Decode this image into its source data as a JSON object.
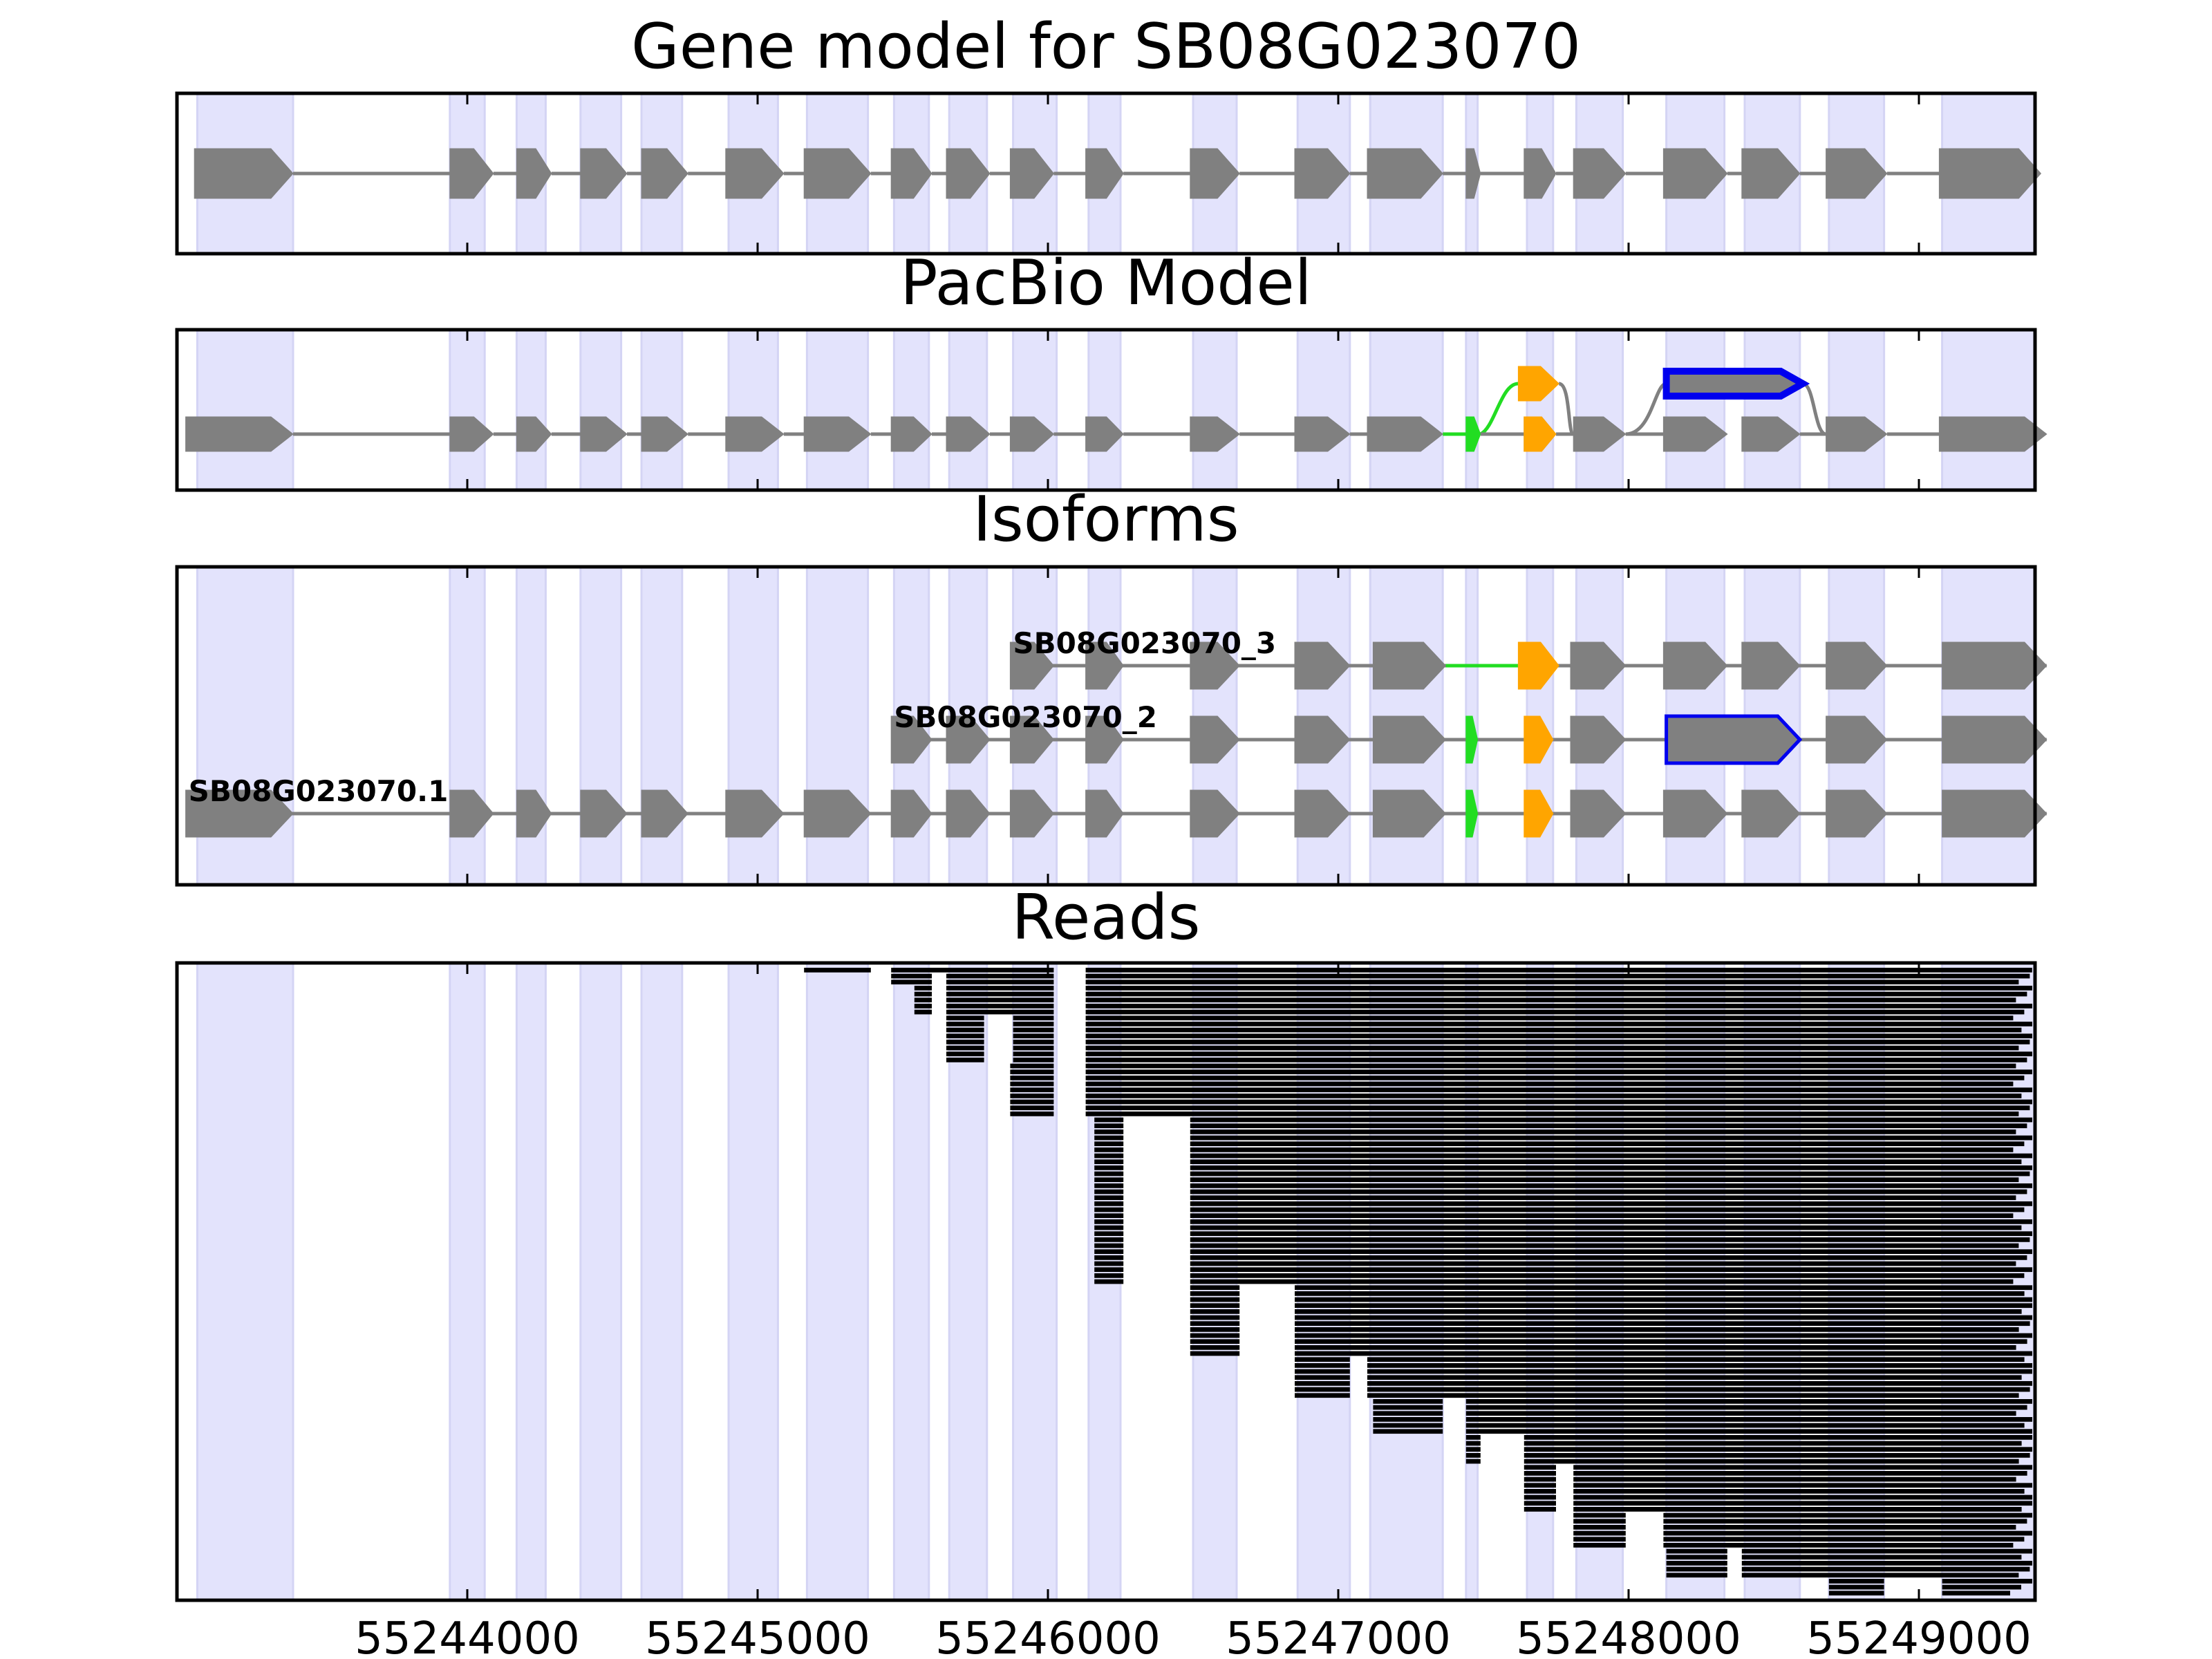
{
  "chart_data": {
    "type": "gene-track",
    "genomic_range": [
      55243000,
      55249400
    ],
    "xticks": [
      55244000,
      55245000,
      55246000,
      55247000,
      55248000,
      55249000
    ],
    "colors": {
      "exon": "#808080",
      "intron": "#808080",
      "highlight": "#e3e3fc",
      "alt_green": "#22dd22",
      "alt_orange": "#ffa500",
      "retained_intron": "#0000ee",
      "read": "#000000"
    },
    "exon_regions": [
      [
        55243070,
        55243400
      ],
      [
        55243940,
        55244060
      ],
      [
        55244170,
        55244270
      ],
      [
        55244390,
        55244530
      ],
      [
        55244600,
        55244740
      ],
      [
        55244900,
        55245070
      ],
      [
        55245170,
        55245380
      ],
      [
        55245470,
        55245590
      ],
      [
        55245660,
        55245790
      ],
      [
        55245880,
        55246030
      ],
      [
        55246140,
        55246250
      ],
      [
        55246500,
        55246650
      ],
      [
        55246860,
        55247040
      ],
      [
        55247110,
        55247360
      ],
      [
        55247440,
        55247480
      ],
      [
        55247650,
        55247740
      ],
      [
        55247820,
        55247980
      ],
      [
        55248130,
        55248330
      ],
      [
        55248400,
        55248590
      ],
      [
        55248690,
        55248880
      ],
      [
        55249080,
        55249400
      ]
    ],
    "panels": [
      {
        "title": "Gene model for SB08G023070"
      },
      {
        "title": "PacBio Model"
      },
      {
        "title": "Isoforms"
      },
      {
        "title": "Reads"
      }
    ],
    "gene_model": {
      "exons": [
        [
          55243060,
          55243400
        ],
        [
          55243940,
          55244090
        ],
        [
          55244170,
          55244290
        ],
        [
          55244390,
          55244550
        ],
        [
          55244600,
          55244760
        ],
        [
          55244890,
          55245090
        ],
        [
          55245160,
          55245390
        ],
        [
          55245460,
          55245600
        ],
        [
          55245650,
          55245800
        ],
        [
          55245870,
          55246020
        ],
        [
          55246130,
          55246260
        ],
        [
          55246490,
          55246660
        ],
        [
          55246850,
          55247040
        ],
        [
          55247100,
          55247360
        ],
        [
          55247440,
          55247490
        ],
        [
          55247640,
          55247750
        ],
        [
          55247810,
          55247990
        ],
        [
          55248120,
          55248340
        ],
        [
          55248390,
          55248590
        ],
        [
          55248680,
          55248890
        ],
        [
          55249070,
          55249420
        ]
      ]
    },
    "pacbio_model": {
      "exons": [
        [
          55243030,
          55243400
        ],
        [
          55243940,
          55244090
        ],
        [
          55244170,
          55244290
        ],
        [
          55244390,
          55244550
        ],
        [
          55244600,
          55244760
        ],
        [
          55244890,
          55245090
        ],
        [
          55245160,
          55245390
        ],
        [
          55245460,
          55245600
        ],
        [
          55245650,
          55245800
        ],
        [
          55245870,
          55246020
        ],
        [
          55246130,
          55246260
        ],
        [
          55246490,
          55246660
        ],
        [
          55246850,
          55247040
        ],
        [
          55247100,
          55247360
        ],
        [
          55247640,
          55247750
        ],
        [
          55247810,
          55247990
        ],
        [
          55248120,
          55248340
        ],
        [
          55248390,
          55248590
        ],
        [
          55248680,
          55248890
        ],
        [
          55249070,
          55249440
        ]
      ],
      "green_exon": [
        55247440,
        55247490
      ],
      "orange_exon_main": [
        55247640,
        55247750
      ],
      "orange_exon_alt": [
        55247620,
        55247760
      ],
      "blue_retained": [
        55248130,
        55248600
      ]
    },
    "isoforms": [
      {
        "label": "SB08G023070_3",
        "label_x": 55245870,
        "exons": [
          [
            55245870,
            55246020
          ],
          [
            55246130,
            55246260
          ],
          [
            55246490,
            55246660
          ],
          [
            55246850,
            55247040
          ],
          [
            55247120,
            55247370
          ],
          [
            55247800,
            55247990
          ],
          [
            55248120,
            55248340
          ],
          [
            55248390,
            55248590
          ],
          [
            55248680,
            55248890
          ],
          [
            55249080,
            55249440
          ]
        ],
        "orange": [
          55247620,
          55247760
        ],
        "green_link": [
          55247370,
          55247620
        ],
        "blue": null
      },
      {
        "label": "SB08G023070_2",
        "label_x": 55245460,
        "exons": [
          [
            55245460,
            55245600
          ],
          [
            55245650,
            55245800
          ],
          [
            55245870,
            55246020
          ],
          [
            55246130,
            55246260
          ],
          [
            55246490,
            55246660
          ],
          [
            55246850,
            55247040
          ],
          [
            55247120,
            55247370
          ],
          [
            55247800,
            55247990
          ],
          [
            55248680,
            55248890
          ],
          [
            55249080,
            55249440
          ]
        ],
        "green": [
          55247440,
          55247480
        ],
        "orange": [
          55247640,
          55247740
        ],
        "blue": [
          55248130,
          55248590
        ]
      },
      {
        "label": "SB08G023070.1",
        "label_x": 55243030,
        "exons": [
          [
            55243030,
            55243400
          ],
          [
            55243940,
            55244090
          ],
          [
            55244170,
            55244290
          ],
          [
            55244390,
            55244550
          ],
          [
            55244600,
            55244760
          ],
          [
            55244890,
            55245090
          ],
          [
            55245160,
            55245390
          ],
          [
            55245460,
            55245600
          ],
          [
            55245650,
            55245800
          ],
          [
            55245870,
            55246020
          ],
          [
            55246130,
            55246260
          ],
          [
            55246490,
            55246660
          ],
          [
            55246850,
            55247040
          ],
          [
            55247120,
            55247370
          ],
          [
            55247800,
            55247990
          ],
          [
            55248120,
            55248340
          ],
          [
            55248390,
            55248590
          ],
          [
            55248680,
            55248890
          ],
          [
            55249080,
            55249440
          ]
        ],
        "green": [
          55247440,
          55247480
        ],
        "orange": [
          55247640,
          55247740
        ],
        "blue": null
      }
    ],
    "reads": {
      "count": 105,
      "block_sets": [
        {
          "from": 0,
          "to": 1,
          "exons": [
            [
              55245160,
              55245390
            ],
            [
              55245460,
              55246020
            ],
            [
              55246130,
              55249390
            ]
          ]
        },
        {
          "from": 1,
          "to": 3,
          "exons": [
            [
              55245460,
              55245600
            ],
            [
              55245650,
              55246020
            ],
            [
              55246130,
              55249420
            ]
          ]
        },
        {
          "from": 3,
          "to": 8,
          "exons": [
            [
              55245540,
              55245600
            ],
            [
              55245650,
              55246020
            ],
            [
              55246130,
              55249420
            ]
          ]
        },
        {
          "from": 8,
          "to": 16,
          "exons": [
            [
              55245650,
              55245780
            ],
            [
              55245880,
              55246020
            ],
            [
              55246130,
              55249420
            ]
          ]
        },
        {
          "from": 16,
          "to": 25,
          "exons": [
            [
              55245870,
              55246020
            ],
            [
              55246130,
              55249420
            ]
          ]
        },
        {
          "from": 25,
          "to": 53,
          "exons": [
            [
              55246160,
              55246260
            ],
            [
              55246490,
              55249420
            ]
          ]
        },
        {
          "from": 53,
          "to": 65,
          "exons": [
            [
              55246490,
              55246660
            ],
            [
              55246850,
              55249430
            ]
          ]
        },
        {
          "from": 65,
          "to": 72,
          "exons": [
            [
              55246850,
              55247040
            ],
            [
              55247100,
              55249430
            ]
          ]
        },
        {
          "from": 72,
          "to": 78,
          "exons": [
            [
              55247120,
              55247360
            ],
            [
              55247440,
              55249430
            ]
          ]
        },
        {
          "from": 78,
          "to": 83,
          "exons": [
            [
              55247440,
              55247490
            ],
            [
              55247640,
              55249430
            ]
          ]
        },
        {
          "from": 83,
          "to": 91,
          "exons": [
            [
              55247640,
              55247750
            ],
            [
              55247810,
              55249430
            ]
          ]
        },
        {
          "from": 91,
          "to": 97,
          "exons": [
            [
              55247810,
              55247990
            ],
            [
              55248120,
              55249420
            ]
          ]
        },
        {
          "from": 97,
          "to": 102,
          "exons": [
            [
              55248130,
              55248340
            ],
            [
              55248390,
              55249420
            ]
          ]
        },
        {
          "from": 102,
          "to": 105,
          "exons": [
            [
              55248690,
              55248880
            ],
            [
              55249080,
              55249400
            ]
          ]
        }
      ]
    }
  }
}
